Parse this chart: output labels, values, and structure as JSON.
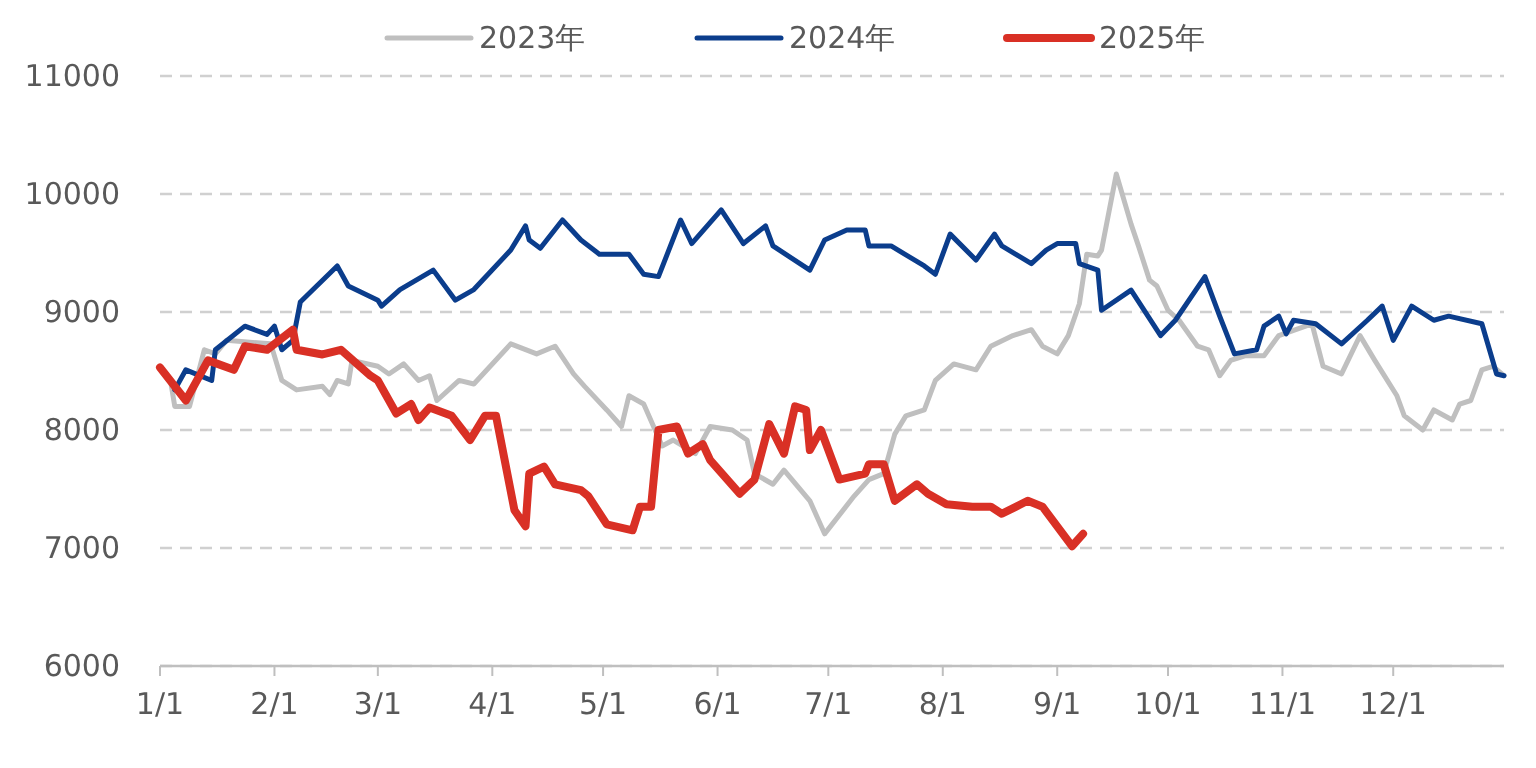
{
  "chart_data": {
    "type": "line",
    "legend": "top",
    "grid": "y",
    "line_style": "solid",
    "marker": "none",
    "xlim": [
      "--01-01",
      "--12-31"
    ],
    "xticks": [
      {
        "value": "--01-01",
        "label": "1/1"
      },
      {
        "value": "--02-01",
        "label": "2/1"
      },
      {
        "value": "--03-01",
        "label": "3/1"
      },
      {
        "value": "--04-01",
        "label": "4/1"
      },
      {
        "value": "--05-01",
        "label": "5/1"
      },
      {
        "value": "--06-01",
        "label": "6/1"
      },
      {
        "value": "--07-01",
        "label": "7/1"
      },
      {
        "value": "--08-01",
        "label": "8/1"
      },
      {
        "value": "--09-01",
        "label": "9/1"
      },
      {
        "value": "--10-01",
        "label": "10/1"
      },
      {
        "value": "--11-01",
        "label": "11/1"
      },
      {
        "value": "--12-01",
        "label": "12/1"
      }
    ],
    "ylim": [
      6000,
      11000
    ],
    "yticks": [
      6000,
      7000,
      8000,
      9000,
      10000,
      11000
    ],
    "series": [
      {
        "name": "2023年",
        "color": "#bfbfbf",
        "x": [
          "--01-04",
          "--01-05",
          "--01-09",
          "--01-13",
          "--01-16",
          "--01-19",
          "--01-31",
          "--02-03",
          "--02-07",
          "--02-14",
          "--02-16",
          "--02-18",
          "--02-21",
          "--02-22",
          "--03-01",
          "--03-04",
          "--03-08",
          "--03-12",
          "--03-15",
          "--03-17",
          "--03-23",
          "--03-27",
          "--04-06",
          "--04-13",
          "--04-18",
          "--04-23",
          "--04-26",
          "--05-02",
          "--05-06",
          "--05-08",
          "--05-12",
          "--05-17",
          "--05-20",
          "--05-26",
          "--05-30",
          "--06-05",
          "--06-09",
          "--06-11",
          "--06-16",
          "--06-19",
          "--06-26",
          "--06-30",
          "--07-08",
          "--07-12",
          "--07-16",
          "--07-19",
          "--07-22",
          "--07-27",
          "--07-30",
          "--08-04",
          "--08-10",
          "--08-14",
          "--08-20",
          "--08-25",
          "--08-28",
          "--09-01",
          "--09-04",
          "--09-07",
          "--09-09",
          "--09-12",
          "--09-13",
          "--09-17",
          "--09-21",
          "--09-23",
          "--09-26",
          "--09-28",
          "--10-01",
          "--10-04",
          "--10-09",
          "--10-12",
          "--10-15",
          "--10-18",
          "--10-22",
          "--10-27",
          "--10-31",
          "--11-09",
          "--11-12",
          "--11-17",
          "--11-22",
          "--11-26",
          "--12-02",
          "--12-04",
          "--12-09",
          "--12-12",
          "--12-17",
          "--12-19",
          "--12-22",
          "--12-25",
          "--12-28",
          "--12-31"
        ],
        "values": [
          8390,
          8200,
          8200,
          8680,
          8645,
          8760,
          8730,
          8420,
          8340,
          8370,
          8300,
          8420,
          8390,
          8590,
          8540,
          8475,
          8560,
          8420,
          8460,
          8250,
          8420,
          8390,
          8730,
          8645,
          8710,
          8475,
          8370,
          8170,
          8030,
          8290,
          8220,
          7865,
          7915,
          7800,
          8030,
          8000,
          7915,
          7630,
          7540,
          7660,
          7400,
          7120,
          7440,
          7580,
          7630,
          7965,
          8120,
          8170,
          8420,
          8560,
          8510,
          8710,
          8800,
          8850,
          8710,
          8645,
          8800,
          9070,
          9490,
          9475,
          9525,
          10170,
          9745,
          9560,
          9270,
          9220,
          9015,
          8930,
          8710,
          8680,
          8460,
          8590,
          8630,
          8630,
          8800,
          8900,
          8540,
          8475,
          8800,
          8590,
          8290,
          8120,
          8000,
          8170,
          8085,
          8220,
          8250,
          8510,
          8540,
          8460
        ]
      },
      {
        "name": "2024年",
        "color": "#0b3d8c",
        "x": [
          "--01-05",
          "--01-08",
          "--01-15",
          "--01-16",
          "--01-24",
          "--01-30",
          "--02-01",
          "--02-03",
          "--02-06",
          "--02-08",
          "--02-18",
          "--02-21",
          "--03-01",
          "--03-02",
          "--03-07",
          "--03-16",
          "--03-22",
          "--03-27",
          "--04-06",
          "--04-10",
          "--04-11",
          "--04-14",
          "--04-20",
          "--04-25",
          "--04-30",
          "--05-08",
          "--05-12",
          "--05-16",
          "--05-22",
          "--05-25",
          "--06-02",
          "--06-08",
          "--06-14",
          "--06-16",
          "--06-26",
          "--06-30",
          "--07-06",
          "--07-11",
          "--07-12",
          "--07-18",
          "--07-27",
          "--07-30",
          "--08-03",
          "--08-10",
          "--08-15",
          "--08-17",
          "--08-25",
          "--08-29",
          "--09-01",
          "--09-06",
          "--09-07",
          "--09-12",
          "--09-13",
          "--09-21",
          "--09-29",
          "--10-03",
          "--10-11",
          "--10-15",
          "--10-19",
          "--10-25",
          "--10-27",
          "--10-31",
          "--11-02",
          "--11-04",
          "--11-10",
          "--11-17",
          "--11-24",
          "--11-28",
          "--12-01",
          "--12-06",
          "--12-12",
          "--12-16",
          "--12-25",
          "--12-29",
          "--12-31"
        ],
        "values": [
          8340,
          8510,
          8420,
          8680,
          8880,
          8810,
          8880,
          8680,
          8760,
          9085,
          9390,
          9220,
          9100,
          9050,
          9190,
          9355,
          9100,
          9190,
          9525,
          9730,
          9610,
          9540,
          9780,
          9610,
          9490,
          9490,
          9320,
          9300,
          9780,
          9580,
          9865,
          9580,
          9730,
          9560,
          9355,
          9610,
          9695,
          9695,
          9560,
          9560,
          9390,
          9320,
          9660,
          9440,
          9660,
          9560,
          9410,
          9525,
          9580,
          9580,
          9410,
          9355,
          9015,
          9185,
          8800,
          8930,
          9300,
          8965,
          8645,
          8680,
          8880,
          8965,
          8815,
          8930,
          8900,
          8730,
          8930,
          9050,
          8760,
          9050,
          8930,
          8965,
          8900,
          8475,
          8460
        ]
      },
      {
        "name": "2025年",
        "color": "#d93025",
        "x": [
          "--01-01",
          "--01-08",
          "--01-14",
          "--01-21",
          "--01-24",
          "--01-30",
          "--02-06",
          "--02-07",
          "--02-14",
          "--02-19",
          "--02-27",
          "--03-01",
          "--03-06",
          "--03-10",
          "--03-12",
          "--03-15",
          "--03-21",
          "--03-26",
          "--03-30",
          "--04-02",
          "--04-07",
          "--04-10",
          "--04-11",
          "--04-15",
          "--04-18",
          "--04-25",
          "--04-27",
          "--05-02",
          "--05-09",
          "--05-11",
          "--05-14",
          "--05-16",
          "--05-21",
          "--05-24",
          "--05-28",
          "--05-30",
          "--06-07",
          "--06-11",
          "--06-15",
          "--06-19",
          "--06-22",
          "--06-25",
          "--06-26",
          "--06-29",
          "--07-04",
          "--07-11",
          "--07-12",
          "--07-16",
          "--07-19",
          "--07-25",
          "--07-28",
          "--08-02",
          "--08-09",
          "--08-14",
          "--08-17",
          "--08-24",
          "--08-28",
          "--09-05",
          "--09-08"
        ],
        "values": [
          8530,
          8250,
          8590,
          8510,
          8710,
          8680,
          8850,
          8680,
          8640,
          8680,
          8460,
          8420,
          8140,
          8220,
          8085,
          8190,
          8120,
          7915,
          8120,
          8120,
          7320,
          7185,
          7630,
          7690,
          7540,
          7490,
          7440,
          7200,
          7150,
          7350,
          7350,
          8000,
          8030,
          7800,
          7880,
          7745,
          7460,
          7580,
          8050,
          7800,
          8200,
          8170,
          7830,
          8000,
          7580,
          7630,
          7710,
          7710,
          7400,
          7540,
          7460,
          7370,
          7350,
          7350,
          7290,
          7400,
          7350,
          7015,
          7120
        ]
      }
    ]
  }
}
